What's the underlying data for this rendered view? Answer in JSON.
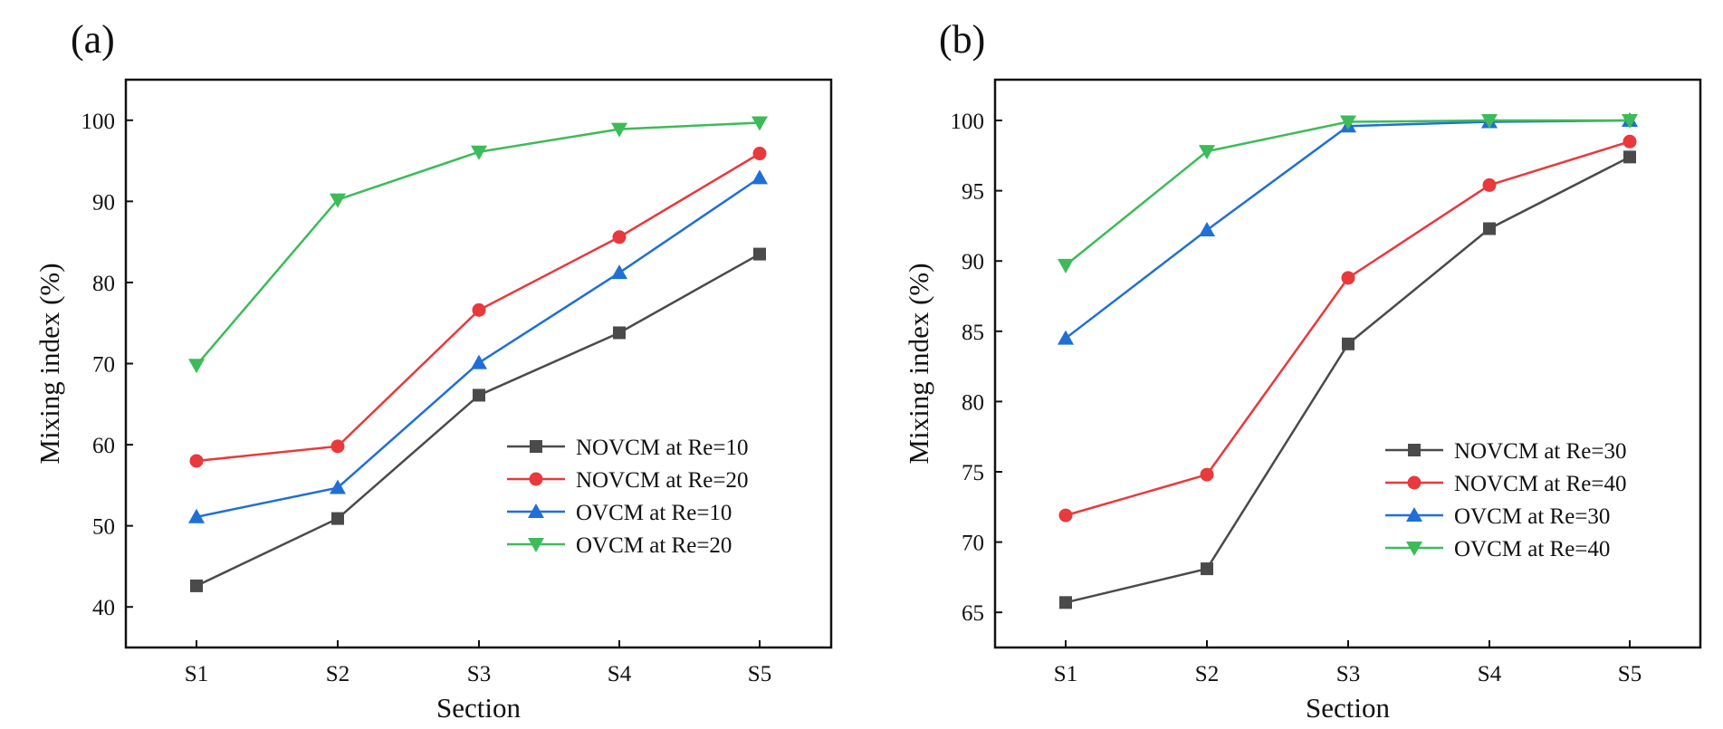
{
  "chart_data": [
    {
      "panel_label": "(a)",
      "type": "line",
      "xlabel": "Section",
      "ylabel": "Mixing index (%)",
      "categories": [
        "S1",
        "S2",
        "S3",
        "S4",
        "S5"
      ],
      "ylim": [
        35,
        105
      ],
      "yticks": [
        "40",
        "50",
        "60",
        "70",
        "80",
        "90",
        "100"
      ],
      "grid": false,
      "legend_position": "lower-right",
      "series": [
        {
          "name": "NOVCM at Re=10",
          "color": "#4a4a4a",
          "marker": "square",
          "values": [
            42.6,
            50.9,
            66.1,
            73.8,
            83.5
          ]
        },
        {
          "name": "NOVCM at Re=20",
          "color": "#e8393c",
          "marker": "circle",
          "values": [
            58.0,
            59.8,
            76.6,
            85.6,
            95.9
          ]
        },
        {
          "name": "OVCM at Re=10",
          "color": "#1f6fd6",
          "marker": "triangle-up",
          "values": [
            51.1,
            54.7,
            70.1,
            81.2,
            92.9
          ]
        },
        {
          "name": "OVCM at Re=20",
          "color": "#3dbb5a",
          "marker": "triangle-down",
          "values": [
            69.8,
            90.2,
            96.1,
            98.9,
            99.7
          ]
        }
      ]
    },
    {
      "panel_label": "(b)",
      "type": "line",
      "xlabel": "Section",
      "ylabel": "Mixing index (%)",
      "categories": [
        "S1",
        "S2",
        "S3",
        "S4",
        "S5"
      ],
      "ylim": [
        62.5,
        102.9
      ],
      "yticks": [
        "65",
        "70",
        "75",
        "80",
        "85",
        "90",
        "95",
        "100"
      ],
      "grid": false,
      "legend_position": "lower-right",
      "series": [
        {
          "name": "NOVCM at Re=30",
          "color": "#4a4a4a",
          "marker": "square",
          "values": [
            65.7,
            68.1,
            84.1,
            92.3,
            97.4
          ]
        },
        {
          "name": "NOVCM at Re=40",
          "color": "#e8393c",
          "marker": "circle",
          "values": [
            71.9,
            74.8,
            88.8,
            95.4,
            98.5
          ]
        },
        {
          "name": "OVCM at Re=30",
          "color": "#1f6fd6",
          "marker": "triangle-up",
          "values": [
            84.5,
            92.2,
            99.6,
            99.9,
            100.0
          ]
        },
        {
          "name": "OVCM at Re=40",
          "color": "#3dbb5a",
          "marker": "triangle-down",
          "values": [
            89.7,
            97.8,
            99.9,
            100.0,
            100.0
          ]
        }
      ]
    }
  ]
}
